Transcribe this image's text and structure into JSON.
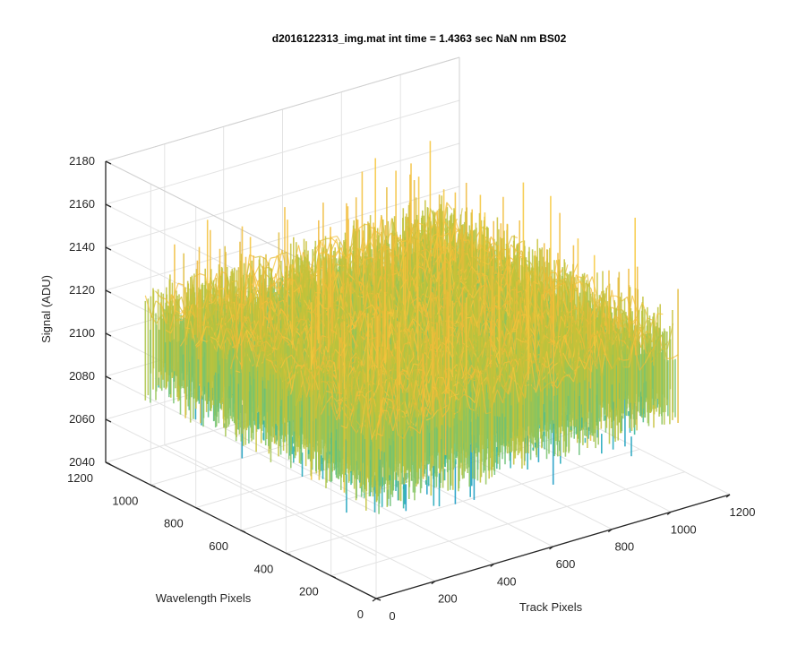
{
  "chart_data": {
    "type": "surface",
    "title": "d2016122313_img.mat int time = 1.4363 sec  NaN nm BS02",
    "xlabel": "Track Pixels",
    "ylabel": "Wavelength Pixels",
    "zlabel": "Signal (ADU)",
    "x_ticks": [
      "0",
      "200",
      "400",
      "600",
      "800",
      "1000",
      "1200"
    ],
    "y_ticks": [
      "0",
      "200",
      "400",
      "600",
      "800",
      "1000",
      "1200"
    ],
    "z_ticks": [
      "2040",
      "2060",
      "2080",
      "2100",
      "2120",
      "2140",
      "2160",
      "2180"
    ],
    "xlim": [
      0,
      1200
    ],
    "ylim": [
      0,
      1200
    ],
    "zlim": [
      2040,
      2180
    ],
    "x_extent": [
      0,
      1024
    ],
    "y_extent": [
      0,
      1024
    ],
    "signal_mean": 2120,
    "signal_min_approx": 2058,
    "signal_max_approx": 2170,
    "colormap": [
      "#0a8fc7",
      "#1aa6b7",
      "#35b79e",
      "#7cc46a",
      "#bcc33a",
      "#f0b93a",
      "#f7c83c"
    ],
    "grid": true,
    "box": "3d-axes"
  }
}
